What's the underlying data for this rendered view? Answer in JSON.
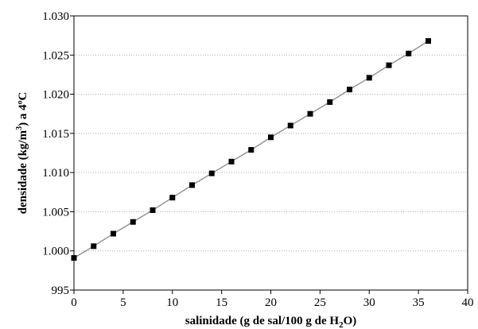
{
  "chart_data": {
    "type": "line",
    "xlabel_main": "salinidade (g de sal/100 g de H",
    "xlabel_sub": "2",
    "xlabel_end": "O)",
    "ylabel_main": "densidade (kg/m",
    "ylabel_sup": "3",
    "ylabel_end": ") a 4ºC",
    "xlim": [
      0,
      40
    ],
    "ylim": [
      995,
      1030
    ],
    "x_ticks": [
      0,
      5,
      10,
      15,
      20,
      25,
      30,
      35,
      40
    ],
    "x_tick_labels": [
      "0",
      "5",
      "10",
      "15",
      "20",
      "25",
      "30",
      "35",
      "40"
    ],
    "y_ticks": [
      995,
      1000,
      1005,
      1010,
      1015,
      1020,
      1025,
      1030
    ],
    "y_tick_labels": [
      "995",
      "1.000",
      "1.005",
      "1.010",
      "1.015",
      "1.020",
      "1.025",
      "1.030"
    ],
    "grid": "horizontal-dotted",
    "series": [
      {
        "x": [
          0,
          2,
          4,
          6,
          8,
          10,
          12,
          14,
          16,
          18,
          20,
          22,
          24,
          26,
          28,
          30,
          32,
          34,
          36
        ],
        "y": [
          999.1,
          1000.6,
          1002.2,
          1003.7,
          1005.2,
          1006.8,
          1008.4,
          1009.9,
          1011.4,
          1012.9,
          1014.5,
          1016.0,
          1017.5,
          1019.0,
          1020.6,
          1022.1,
          1023.7,
          1025.2,
          1026.8
        ],
        "color": "#000000",
        "line_color": "#888888"
      }
    ]
  }
}
